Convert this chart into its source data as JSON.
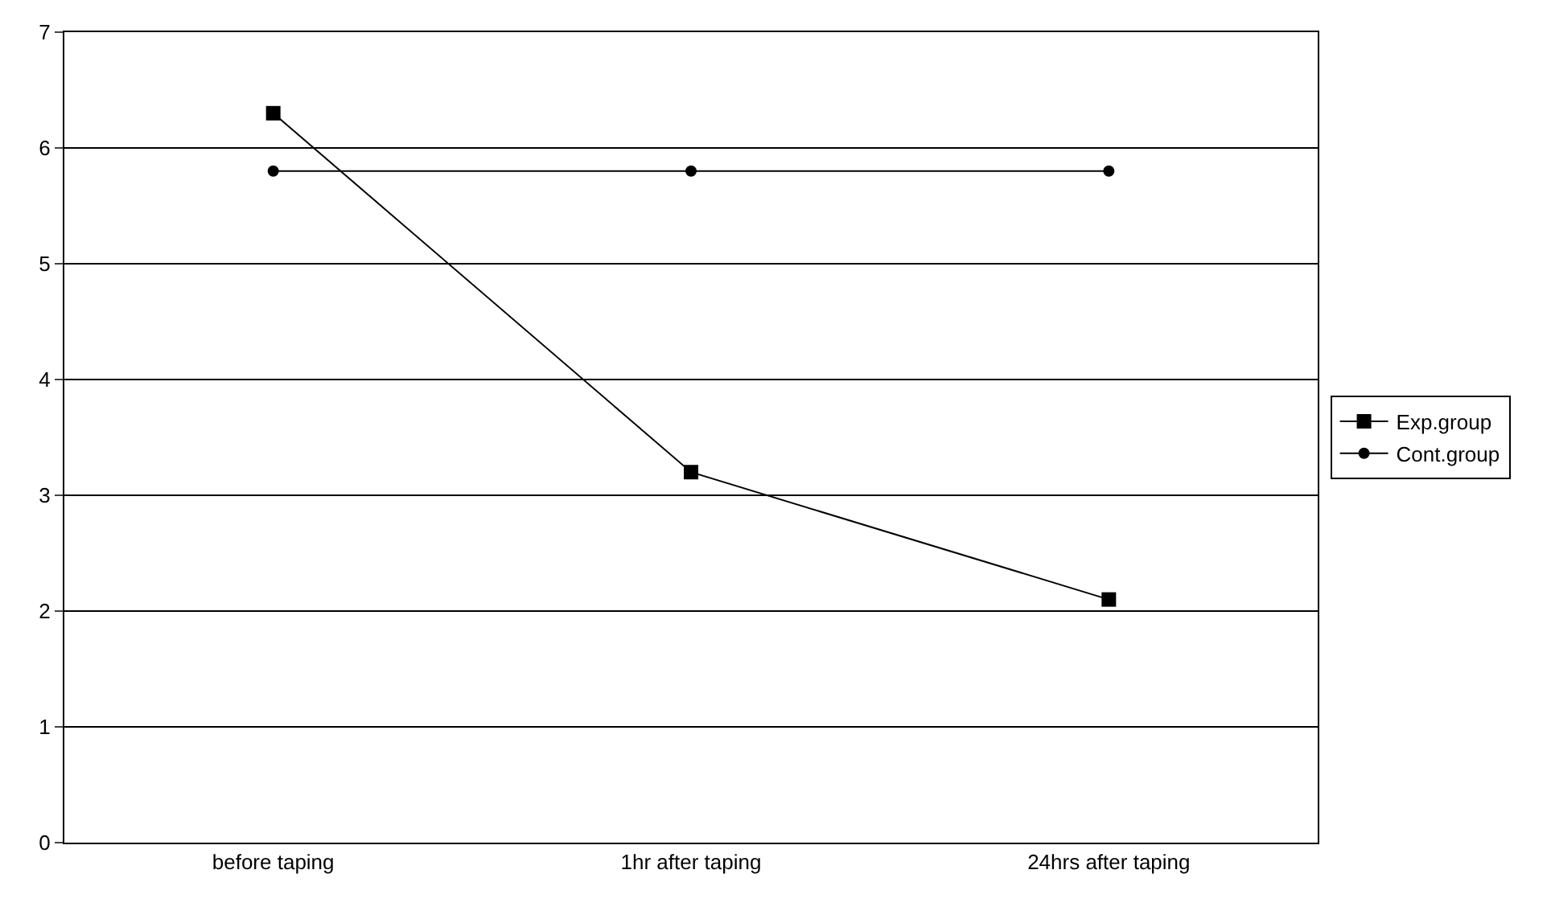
{
  "chart_data": {
    "type": "line",
    "categories": [
      "before taping",
      "1hr after taping",
      "24hrs after taping"
    ],
    "series": [
      {
        "name": "Exp.group",
        "color": "#000000",
        "marker": "square",
        "values": [
          6.3,
          3.2,
          2.1
        ]
      },
      {
        "name": "Cont.group",
        "color": "#000000",
        "marker": "circle",
        "values": [
          5.8,
          5.8,
          5.8
        ]
      }
    ],
    "ylim": [
      0,
      7
    ],
    "yticks": [
      0,
      1,
      2,
      3,
      4,
      5,
      6,
      7
    ],
    "grid": "y",
    "legend": "right",
    "line_style": "solid"
  }
}
